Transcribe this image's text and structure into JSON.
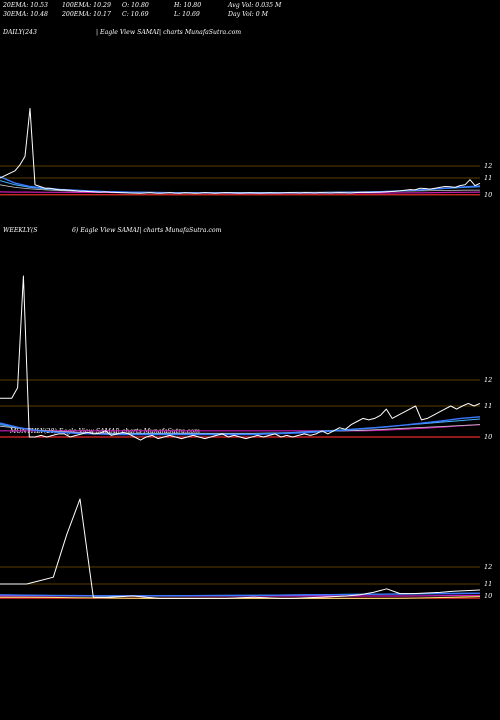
{
  "stats": {
    "row1": [
      "20EMA: 10.53",
      "100EMA: 10.29",
      "O: 10.80",
      "H: 10.80",
      "Avg Vol: 0.035 M"
    ],
    "row2": [
      "30EMA: 10.48",
      "200EMA: 10.17",
      "C: 10.69",
      "L: 10.69",
      "Day Vol: 0  M"
    ]
  },
  "colors": {
    "price": "#ffffff",
    "level": "#7a5200",
    "ema_blue": "#3a78ff",
    "ema_cyan": "#46b4ff",
    "ema_gray": "#c8c8c8",
    "ema_magenta": "#c81eb4",
    "ema_red": "#e62828",
    "ema_yellow": "#ffe878"
  },
  "chart_data": [
    {
      "type": "line",
      "label": "DAILY(243",
      "caption": "| Eagle  View  SAMAI| charts MunafaSutra.com",
      "y_ticks": [
        "12",
        "11",
        "10"
      ],
      "price": [
        11.0,
        11.2,
        11.4,
        11.6,
        12.1,
        12.8,
        16.8,
        10.6,
        10.5,
        10.4,
        10.4,
        10.35,
        10.3,
        10.3,
        10.28,
        10.25,
        10.22,
        10.22,
        10.2,
        10.18,
        10.17,
        10.18,
        10.16,
        10.15,
        10.14,
        10.13,
        10.12,
        10.11,
        10.1,
        10.12,
        10.14,
        10.11,
        10.1,
        10.12,
        10.14,
        10.11,
        10.1,
        10.13,
        10.12,
        10.1,
        10.11,
        10.14,
        10.12,
        10.1,
        10.12,
        10.14,
        10.13,
        10.12,
        10.11,
        10.12,
        10.13,
        10.12,
        10.11,
        10.12,
        10.13,
        10.12,
        10.12,
        10.13,
        10.14,
        10.13,
        10.12,
        10.14,
        10.13,
        10.12,
        10.14,
        10.13,
        10.12,
        10.13,
        10.14,
        10.13,
        10.12,
        10.14,
        10.15,
        10.16,
        10.15,
        10.16,
        10.17,
        10.18,
        10.2,
        10.22,
        10.24,
        10.28,
        10.32,
        10.3,
        10.4,
        10.38,
        10.35,
        10.4,
        10.45,
        10.5,
        10.48,
        10.45,
        10.55,
        10.6,
        10.9,
        10.55,
        10.69
      ],
      "ema_magenta": [
        10.18,
        10.17,
        10.17,
        10.16,
        10.16,
        10.15,
        10.15,
        10.15,
        10.14,
        10.14,
        10.13,
        10.12,
        10.12,
        10.12,
        10.12,
        10.11,
        10.11,
        10.11,
        10.11,
        10.11,
        10.11,
        10.11,
        10.12,
        10.12,
        10.12,
        10.12,
        10.12,
        10.13,
        10.13,
        10.14,
        10.15,
        10.16,
        10.17
      ],
      "ema_red": [
        10.02,
        10.02,
        10.02,
        10.02,
        10.02,
        10.02,
        10.02,
        10.02,
        10.02,
        10.02,
        10.02,
        10.02,
        10.02,
        10.02,
        10.02,
        10.02,
        10.02,
        10.02,
        10.02,
        10.02,
        10.02,
        10.02,
        10.02,
        10.02,
        10.02,
        10.02,
        10.02,
        10.02,
        10.02,
        10.02,
        10.02,
        10.02,
        10.02
      ],
      "ema_blue": [
        11.1,
        10.7,
        10.5,
        10.4,
        10.33,
        10.28,
        10.24,
        10.2,
        10.18,
        10.16,
        10.15,
        10.14,
        10.13,
        10.13,
        10.13,
        10.13,
        10.12,
        10.12,
        10.12,
        10.13,
        10.13,
        10.13,
        10.14,
        10.15,
        10.16,
        10.18,
        10.22,
        10.26,
        10.3,
        10.36,
        10.42,
        10.48,
        10.53
      ],
      "ema_cyan": [
        10.85,
        10.6,
        10.45,
        10.36,
        10.3,
        10.26,
        10.22,
        10.2,
        10.18,
        10.16,
        10.15,
        10.14,
        10.14,
        10.14,
        10.13,
        10.13,
        10.13,
        10.13,
        10.13,
        10.13,
        10.14,
        10.14,
        10.15,
        10.16,
        10.17,
        10.19,
        10.22,
        10.26,
        10.3,
        10.35,
        10.4,
        10.45,
        10.48
      ],
      "ema_gray": [
        10.6,
        10.45,
        10.36,
        10.3,
        10.26,
        10.23,
        10.21,
        10.19,
        10.18,
        10.17,
        10.16,
        10.15,
        10.15,
        10.15,
        10.15,
        10.15,
        10.15,
        10.15,
        10.15,
        10.15,
        10.16,
        10.16,
        10.17,
        10.18,
        10.19,
        10.2,
        10.21,
        10.23,
        10.24,
        10.26,
        10.27,
        10.28,
        10.29
      ]
    },
    {
      "type": "line",
      "label": "WEEKLY(S",
      "label_b": "6) Eagle  View  SAMAI| charts MunafaSutra.com",
      "y_ticks": [
        "12",
        "11",
        "10"
      ],
      "price": [
        11.3,
        11.3,
        11.3,
        11.7,
        16.0,
        10.0,
        10.0,
        10.05,
        10.0,
        10.05,
        10.1,
        10.1,
        10.0,
        10.05,
        10.1,
        10.15,
        10.1,
        10.12,
        10.2,
        10.05,
        10.1,
        10.15,
        10.1,
        10.0,
        9.9,
        10.0,
        10.05,
        9.95,
        10.0,
        10.05,
        10.0,
        9.95,
        10.0,
        10.05,
        10.0,
        9.95,
        10.0,
        10.05,
        10.1,
        10.0,
        10.05,
        10.0,
        9.95,
        10.0,
        10.05,
        10.0,
        10.05,
        10.1,
        10.0,
        10.05,
        10.0,
        10.05,
        10.1,
        10.05,
        10.1,
        10.2,
        10.1,
        10.2,
        10.3,
        10.25,
        10.4,
        10.5,
        10.6,
        10.55,
        10.6,
        10.7,
        10.9,
        10.6,
        10.7,
        10.8,
        10.9,
        11.0,
        10.55,
        10.6,
        10.7,
        10.8,
        10.9,
        11.0,
        10.9,
        11.0,
        11.1,
        11.0,
        11.1
      ],
      "ema_magenta": [
        10.2,
        10.2,
        10.2,
        10.2,
        10.2,
        10.2,
        10.2,
        10.2,
        10.2,
        10.2,
        10.2,
        10.2,
        10.2,
        10.2,
        10.2,
        10.2,
        10.2,
        10.2,
        10.2,
        10.2,
        10.22,
        10.25,
        10.28,
        10.32,
        10.36,
        10.4
      ],
      "ema_red": [
        10.0,
        10.0,
        10.0,
        10.0,
        10.0,
        10.0,
        10.0,
        10.0,
        10.0,
        10.0,
        10.0,
        10.0,
        10.0,
        10.0,
        10.0,
        10.0,
        10.0,
        10.0,
        10.0,
        10.0,
        10.0,
        10.0,
        10.0,
        10.0,
        10.0,
        10.0
      ],
      "ema_blue": [
        10.45,
        10.3,
        10.2,
        10.15,
        10.12,
        10.1,
        10.08,
        10.08,
        10.08,
        10.08,
        10.08,
        10.08,
        10.08,
        10.08,
        10.1,
        10.12,
        10.14,
        10.18,
        10.22,
        10.27,
        10.32,
        10.38,
        10.45,
        10.52,
        10.6,
        10.65
      ],
      "ema_cyan": [
        10.4,
        10.3,
        10.2,
        10.15,
        10.12,
        10.1,
        10.1,
        10.1,
        10.1,
        10.1,
        10.1,
        10.1,
        10.1,
        10.1,
        10.12,
        10.14,
        10.17,
        10.2,
        10.24,
        10.28,
        10.33,
        10.38,
        10.43,
        10.48,
        10.53,
        10.58
      ],
      "ema_gray": [
        10.35,
        10.28,
        10.22,
        10.18,
        10.15,
        10.13,
        10.12,
        10.12,
        10.12,
        10.12,
        10.12,
        10.12,
        10.12,
        10.12,
        10.13,
        10.14,
        10.16,
        10.18,
        10.2,
        10.22,
        10.25,
        10.28,
        10.31,
        10.34,
        10.37,
        10.4
      ]
    },
    {
      "type": "line",
      "label": "MONTHLY(28) Eagle  View  SAMAI| charts MunafaSutra.com",
      "y_ticks": [
        "12",
        "11",
        "10"
      ],
      "price": [
        11.0,
        11.0,
        11.0,
        11.2,
        11.4,
        13.9,
        16.0,
        9.9,
        9.9,
        9.95,
        10.0,
        9.9,
        9.8,
        9.8,
        9.8,
        9.8,
        9.8,
        9.8,
        9.85,
        9.9,
        9.85,
        9.8,
        9.8,
        9.85,
        9.9,
        9.95,
        10.0,
        10.1,
        10.3,
        10.6,
        10.2,
        10.2,
        10.25,
        10.3,
        10.4,
        10.45,
        10.5
      ],
      "ema_magenta": [
        10.0,
        10.0,
        10.0,
        10.0,
        10.0,
        10.0,
        10.0,
        10.0,
        10.0,
        10.0,
        10.0,
        10.0,
        10.0,
        10.0,
        10.0,
        10.0,
        10.0,
        10.02,
        10.04,
        10.06
      ],
      "ema_red": [
        9.82,
        9.82,
        9.82,
        9.82,
        9.82,
        9.82,
        9.82,
        9.82,
        9.82,
        9.82,
        9.82,
        9.82,
        9.82,
        9.82,
        9.82,
        9.82,
        9.82,
        9.82,
        9.82,
        9.82
      ],
      "ema_blue": [
        10.1,
        10.07,
        10.05,
        10.03,
        10.02,
        10.02,
        10.02,
        10.02,
        10.03,
        10.04,
        10.05,
        10.07,
        10.09,
        10.11,
        10.13,
        10.15,
        10.17,
        10.19,
        10.21,
        10.23
      ],
      "ema_cyan": [
        10.08,
        10.06,
        10.04,
        10.03,
        10.02,
        10.02,
        10.02,
        10.03,
        10.04,
        10.05,
        10.06,
        10.08,
        10.1,
        10.12,
        10.14,
        10.16,
        10.18,
        10.2,
        10.22,
        10.24
      ],
      "ema_yellow": [
        9.9,
        9.9,
        9.88,
        9.86,
        9.84,
        9.82,
        9.8,
        9.8,
        9.8,
        9.8,
        9.8,
        9.8,
        9.8,
        9.8,
        9.8,
        9.8,
        9.82,
        9.86,
        9.9,
        9.95
      ]
    }
  ]
}
